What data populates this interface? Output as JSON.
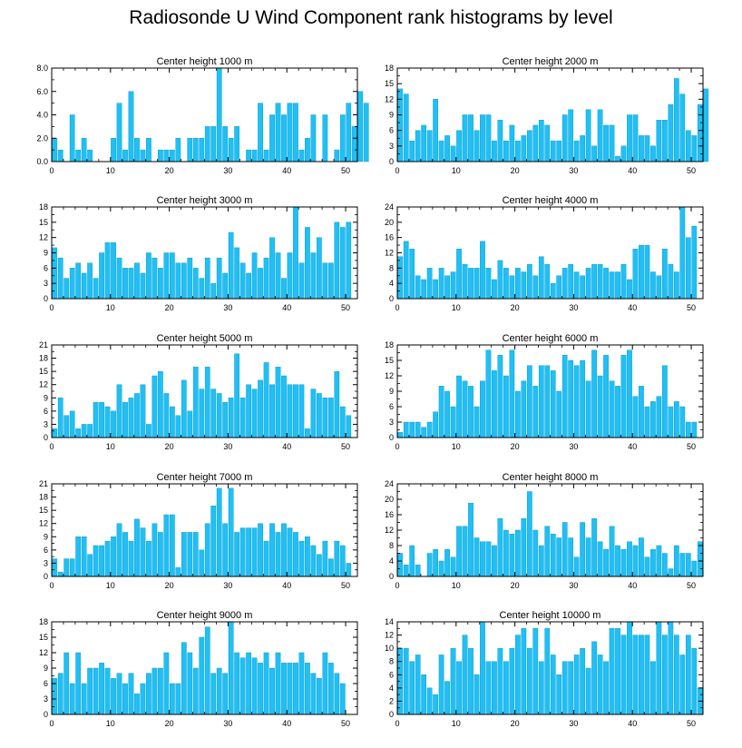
{
  "title": "Radiosonde U Wind Component rank histograms by level",
  "colors": {
    "bar": "#1ec0f5",
    "bar_edge": "#0a8fc0",
    "axis": "#000000",
    "background": "#ffffff"
  },
  "chart_data": [
    {
      "type": "bar",
      "title": "Center height 1000 m",
      "xlim": [
        0,
        52
      ],
      "ylim": [
        0,
        8
      ],
      "yticks": [
        0,
        2,
        4,
        6,
        8
      ],
      "ytick_labels": [
        "0.0",
        "2.0",
        "4.0",
        "6.0",
        "8.0"
      ],
      "xticks": [
        0,
        10,
        20,
        30,
        40,
        50
      ],
      "values": [
        2,
        1,
        0,
        4,
        1,
        2,
        1,
        0,
        0,
        0,
        2,
        5,
        1,
        6,
        2,
        1,
        2,
        0,
        1,
        1,
        1,
        2,
        0,
        2,
        2,
        2,
        3,
        3,
        8,
        3,
        2,
        3,
        0,
        1,
        1,
        5,
        1,
        4,
        5,
        4,
        5,
        5,
        1,
        2,
        4,
        0,
        4,
        0,
        1,
        4,
        5,
        3,
        6,
        5
      ]
    },
    {
      "type": "bar",
      "title": "Center height 2000 m",
      "xlim": [
        0,
        52
      ],
      "ylim": [
        0,
        18
      ],
      "yticks": [
        0,
        3,
        6,
        9,
        12,
        15,
        18
      ],
      "ytick_labels": [
        "0",
        "3",
        "6",
        "9",
        "12",
        "15",
        "18"
      ],
      "xticks": [
        0,
        10,
        20,
        30,
        40,
        50
      ],
      "values": [
        14,
        13,
        4,
        6,
        7,
        6,
        12,
        4,
        5,
        3,
        6,
        9,
        9,
        6,
        9,
        9,
        4,
        8,
        4,
        7,
        4,
        5,
        6,
        7,
        8,
        7,
        4,
        4,
        9,
        10,
        4,
        5,
        10,
        3,
        10,
        7,
        7,
        1,
        3,
        9,
        9,
        5,
        5,
        3,
        8,
        8,
        11,
        16,
        13,
        6,
        5,
        11,
        14
      ]
    },
    {
      "type": "bar",
      "title": "Center height 3000 m",
      "xlim": [
        0,
        52
      ],
      "ylim": [
        0,
        18
      ],
      "yticks": [
        0,
        3,
        6,
        9,
        12,
        15,
        18
      ],
      "ytick_labels": [
        "0",
        "3",
        "6",
        "9",
        "12",
        "15",
        "18"
      ],
      "xticks": [
        0,
        10,
        20,
        30,
        40,
        50
      ],
      "values": [
        10,
        8,
        4,
        6,
        7,
        5,
        7,
        4,
        9,
        11,
        11,
        8,
        6,
        6,
        7,
        5,
        9,
        8,
        6,
        9,
        9,
        7,
        7,
        8,
        6,
        4,
        8,
        3,
        8,
        5,
        13,
        10,
        7,
        5,
        9,
        6,
        8,
        12,
        9,
        4,
        9,
        18,
        7,
        14,
        9,
        12,
        7,
        7,
        15,
        14,
        15
      ]
    },
    {
      "type": "bar",
      "title": "Center height 4000 m",
      "xlim": [
        0,
        52
      ],
      "ylim": [
        0,
        24
      ],
      "yticks": [
        0,
        4,
        8,
        12,
        16,
        20,
        24
      ],
      "ytick_labels": [
        "0",
        "4",
        "8",
        "12",
        "16",
        "20",
        "24"
      ],
      "xticks": [
        0,
        10,
        20,
        30,
        40,
        50
      ],
      "values": [
        11,
        15,
        13,
        6,
        5,
        8,
        5,
        8,
        6,
        7,
        13,
        9,
        8,
        8,
        15,
        8,
        5,
        10,
        8,
        6,
        8,
        7,
        9,
        6,
        11,
        9,
        4,
        6,
        8,
        9,
        7,
        6,
        8,
        9,
        9,
        8,
        7,
        7,
        9,
        5,
        13,
        14,
        14,
        7,
        6,
        13,
        9,
        7,
        24,
        16,
        19
      ]
    },
    {
      "type": "bar",
      "title": "Center height 5000 m",
      "xlim": [
        0,
        52
      ],
      "ylim": [
        0,
        21
      ],
      "yticks": [
        0,
        3,
        6,
        9,
        12,
        15,
        18,
        21
      ],
      "ytick_labels": [
        "0",
        "3",
        "6",
        "9",
        "12",
        "15",
        "18",
        "21"
      ],
      "xticks": [
        0,
        10,
        20,
        30,
        40,
        50
      ],
      "values": [
        2,
        9,
        5,
        6,
        2,
        3,
        3,
        8,
        8,
        7,
        6,
        12,
        8,
        9,
        10,
        12,
        3,
        14,
        15,
        10,
        7,
        5,
        13,
        6,
        16,
        11,
        16,
        11,
        10,
        8,
        9,
        19,
        9,
        12,
        11,
        13,
        17,
        12,
        16,
        14,
        12,
        12,
        12,
        2,
        11,
        10,
        9,
        9,
        15,
        7,
        5
      ]
    },
    {
      "type": "bar",
      "title": "Center height 6000 m",
      "xlim": [
        0,
        52
      ],
      "ylim": [
        0,
        18
      ],
      "yticks": [
        0,
        3,
        6,
        9,
        12,
        15,
        18
      ],
      "ytick_labels": [
        "0",
        "3",
        "6",
        "9",
        "12",
        "15",
        "18"
      ],
      "xticks": [
        0,
        10,
        20,
        30,
        40,
        50
      ],
      "values": [
        1,
        3,
        3,
        3,
        2,
        3,
        5,
        10,
        9,
        6,
        12,
        11,
        10,
        6,
        11,
        17,
        13,
        16,
        12,
        17,
        9,
        11,
        14,
        10,
        14,
        14,
        13,
        9,
        16,
        15,
        14,
        15,
        11,
        17,
        12,
        16,
        11,
        10,
        16,
        17,
        8,
        10,
        6,
        7,
        8,
        14,
        6,
        7,
        6,
        3,
        3
      ]
    },
    {
      "type": "bar",
      "title": "Center height 7000 m",
      "xlim": [
        0,
        52
      ],
      "ylim": [
        0,
        21
      ],
      "yticks": [
        0,
        3,
        6,
        9,
        12,
        15,
        18,
        21
      ],
      "ytick_labels": [
        "0",
        "3",
        "6",
        "9",
        "12",
        "15",
        "18",
        "21"
      ],
      "xticks": [
        0,
        10,
        20,
        30,
        40,
        50
      ],
      "values": [
        4,
        1,
        4,
        4,
        9,
        9,
        5,
        7,
        7,
        8,
        9,
        12,
        10,
        8,
        13,
        11,
        8,
        12,
        10,
        14,
        14,
        2,
        10,
        10,
        10,
        6,
        12,
        16,
        20,
        12,
        20,
        10,
        11,
        11,
        11,
        12,
        8,
        12,
        10,
        12,
        11,
        10,
        8,
        9,
        7,
        5,
        8,
        4,
        8,
        7,
        3
      ]
    },
    {
      "type": "bar",
      "title": "Center height 8000 m",
      "xlim": [
        0,
        52
      ],
      "ylim": [
        0,
        24
      ],
      "yticks": [
        0,
        4,
        8,
        12,
        16,
        20,
        24
      ],
      "ytick_labels": [
        "0",
        "4",
        "8",
        "12",
        "16",
        "20",
        "24"
      ],
      "xticks": [
        0,
        10,
        20,
        30,
        40,
        50
      ],
      "values": [
        6,
        3,
        8,
        3,
        0,
        6,
        7,
        4,
        7,
        5,
        13,
        13,
        19,
        10,
        9,
        9,
        8,
        15,
        12,
        11,
        12,
        15,
        22,
        12,
        8,
        13,
        11,
        10,
        14,
        10,
        5,
        14,
        10,
        15,
        9,
        7,
        13,
        8,
        7,
        9,
        8,
        10,
        5,
        7,
        8,
        6,
        2,
        8,
        6,
        6,
        4,
        9
      ]
    },
    {
      "type": "bar",
      "title": "Center height 9000 m",
      "xlim": [
        0,
        52
      ],
      "ylim": [
        0,
        18
      ],
      "yticks": [
        0,
        3,
        6,
        9,
        12,
        15,
        18
      ],
      "ytick_labels": [
        "0",
        "3",
        "6",
        "9",
        "12",
        "15",
        "18"
      ],
      "xticks": [
        0,
        10,
        20,
        30,
        40,
        50
      ],
      "values": [
        7,
        8,
        12,
        6,
        12,
        6,
        9,
        9,
        10,
        9,
        7,
        8,
        6,
        8,
        4,
        6,
        8,
        9,
        9,
        12,
        6,
        6,
        14,
        12,
        9,
        15,
        17,
        8,
        9,
        8,
        18,
        12,
        11,
        12,
        11,
        10,
        12,
        9,
        12,
        10,
        10,
        10,
        12,
        10,
        8,
        7,
        12,
        10,
        8,
        6
      ]
    },
    {
      "type": "bar",
      "title": "Center height 10000 m",
      "xlim": [
        0,
        52
      ],
      "ylim": [
        0,
        14
      ],
      "yticks": [
        0,
        2,
        4,
        6,
        8,
        10,
        12,
        14
      ],
      "ytick_labels": [
        "0",
        "2",
        "4",
        "6",
        "8",
        "10",
        "12",
        "14"
      ],
      "xticks": [
        0,
        10,
        20,
        30,
        40,
        50
      ],
      "values": [
        10,
        10,
        8,
        9,
        6,
        4,
        3,
        9,
        5,
        10,
        8,
        12,
        10,
        6,
        14,
        8,
        8,
        10,
        8,
        10,
        12,
        13,
        10,
        13,
        8,
        13,
        9,
        6,
        8,
        8,
        9,
        10,
        7,
        11,
        9,
        8,
        13,
        13,
        12,
        14,
        12,
        12,
        12,
        8,
        14,
        12,
        14,
        12,
        9,
        12,
        10,
        4
      ]
    }
  ]
}
